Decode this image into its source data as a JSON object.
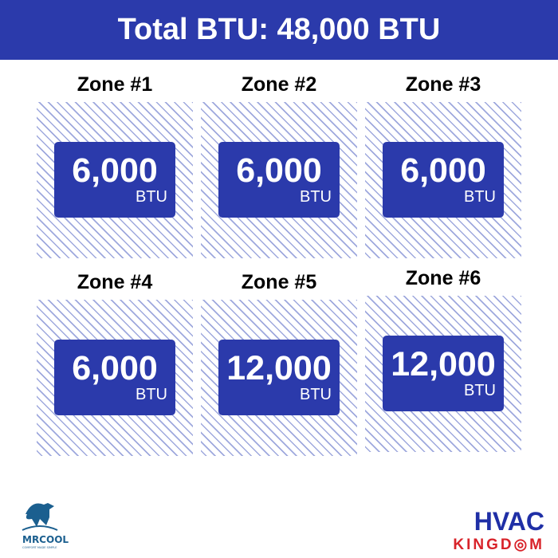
{
  "header": {
    "title": "Total BTU: 48,000 BTU"
  },
  "zones": [
    {
      "label": "Zone #1",
      "value": "6,000",
      "unit": "BTU"
    },
    {
      "label": "Zone #2",
      "value": "6,000",
      "unit": "BTU"
    },
    {
      "label": "Zone #3",
      "value": "6,000",
      "unit": "BTU"
    },
    {
      "label": "Zone #4",
      "value": "6,000",
      "unit": "BTU"
    },
    {
      "label": "Zone #5",
      "value": "12,000",
      "unit": "BTU"
    },
    {
      "label": "Zone #6",
      "value": "12,000",
      "unit": "BTU"
    }
  ],
  "logos": {
    "left": {
      "name": "MRCOOL",
      "tagline": "COMFORT MADE SIMPLE"
    },
    "right": {
      "line1": "HVAC",
      "line2": "KINGDOM"
    }
  },
  "colors": {
    "brand_blue": "#2b3aab",
    "hatch": "#9ea8dd",
    "kingdom_red": "#d8232a"
  }
}
